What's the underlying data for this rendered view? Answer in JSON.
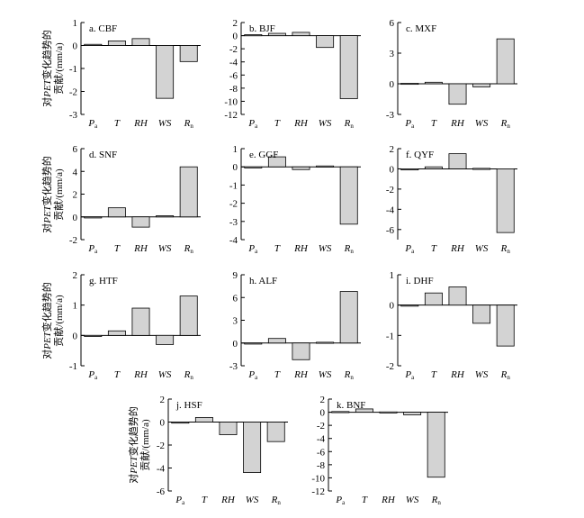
{
  "y_axis_label": {
    "prefix": "对",
    "italic": "PET",
    "suffix": "变化趋势的",
    "line2": "贡献/(mm/a)"
  },
  "categories": [
    {
      "main": "P",
      "sub": "a"
    },
    {
      "main": "T",
      "sub": ""
    },
    {
      "main": "RH",
      "sub": ""
    },
    {
      "main": "WS",
      "sub": ""
    },
    {
      "main": "R",
      "sub": "n"
    }
  ],
  "colors": {
    "bar_fill": "#d3d3d3",
    "bar_stroke": "#000000",
    "axis": "#000000"
  },
  "chart_data": [
    {
      "type": "bar",
      "title": "a. CBF",
      "ylim": [
        -3,
        1
      ],
      "yticks": [
        -3,
        -2,
        -1,
        0,
        1
      ],
      "values": [
        0.05,
        0.2,
        0.3,
        -2.3,
        -0.7
      ]
    },
    {
      "type": "bar",
      "title": "b. BJF",
      "ylim": [
        -12,
        2
      ],
      "yticks": [
        -12,
        -10,
        -8,
        -6,
        -4,
        -2,
        0,
        2
      ],
      "values": [
        0.15,
        0.35,
        0.5,
        -1.8,
        -9.6
      ]
    },
    {
      "type": "bar",
      "title": "c. MXF",
      "ylim": [
        -3,
        6
      ],
      "yticks": [
        -3,
        0,
        3,
        6
      ],
      "values": [
        0.05,
        0.15,
        -2.0,
        -0.3,
        4.4
      ]
    },
    {
      "type": "bar",
      "title": "d. SNF",
      "ylim": [
        -2,
        6
      ],
      "yticks": [
        -2,
        0,
        2,
        4,
        6
      ],
      "values": [
        0.0,
        0.8,
        -0.9,
        0.1,
        4.4
      ]
    },
    {
      "type": "bar",
      "title": "e. GGF",
      "ylim": [
        -4,
        1
      ],
      "yticks": [
        -4,
        -3,
        -2,
        -1,
        0,
        1
      ],
      "values": [
        0.0,
        0.55,
        -0.15,
        0.05,
        -3.15
      ]
    },
    {
      "type": "bar",
      "title": "f. QYF",
      "ylim": [
        -7,
        2
      ],
      "yticks": [
        -6,
        -4,
        -2,
        0,
        2
      ],
      "values": [
        0.0,
        0.2,
        1.5,
        0.05,
        -6.3
      ]
    },
    {
      "type": "bar",
      "title": "g. HTF",
      "ylim": [
        -1,
        2
      ],
      "yticks": [
        -1,
        0,
        1,
        2
      ],
      "values": [
        0.0,
        0.15,
        0.9,
        -0.3,
        1.3
      ]
    },
    {
      "type": "bar",
      "title": "h. ALF",
      "ylim": [
        -3,
        9
      ],
      "yticks": [
        -3,
        0,
        3,
        6,
        9
      ],
      "values": [
        0.0,
        0.6,
        -2.2,
        0.1,
        6.8
      ]
    },
    {
      "type": "bar",
      "title": "i. DHF",
      "ylim": [
        -2,
        1
      ],
      "yticks": [
        -2,
        -1,
        0,
        1
      ],
      "values": [
        0.0,
        0.4,
        0.6,
        -0.6,
        -1.35
      ]
    },
    {
      "type": "bar",
      "title": "j. HSF",
      "ylim": [
        -6,
        2
      ],
      "yticks": [
        -6,
        -4,
        -2,
        0,
        2
      ],
      "values": [
        0.0,
        0.4,
        -1.1,
        -4.4,
        -1.7
      ]
    },
    {
      "type": "bar",
      "title": "k. BNF",
      "ylim": [
        -12,
        2
      ],
      "yticks": [
        -12,
        -10,
        -8,
        -6,
        -4,
        -2,
        0,
        2
      ],
      "values": [
        0.1,
        0.5,
        0.05,
        -0.4,
        -9.9
      ]
    }
  ]
}
